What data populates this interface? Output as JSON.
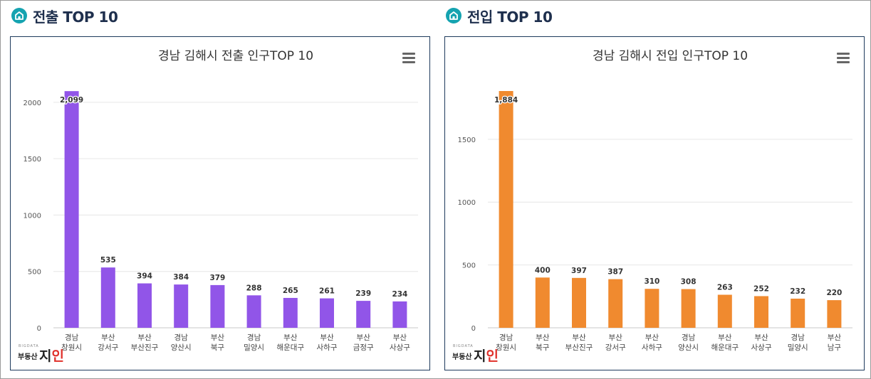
{
  "sections": [
    {
      "heading": "전출 TOP 10"
    },
    {
      "heading": "전입 TOP 10"
    }
  ],
  "logo": {
    "small": "BIGDATA",
    "part1": "부동산",
    "part2a": "지",
    "part2b": "인"
  },
  "chart_data": [
    {
      "type": "bar",
      "title": "경남 김해시 전출 인구TOP 10",
      "color": "#9155e8",
      "categories": [
        [
          "경남",
          "창원시"
        ],
        [
          "부산",
          "강서구"
        ],
        [
          "부산",
          "부산진구"
        ],
        [
          "경남",
          "양산시"
        ],
        [
          "부산",
          "북구"
        ],
        [
          "경남",
          "밀양시"
        ],
        [
          "부산",
          "해운대구"
        ],
        [
          "부산",
          "사하구"
        ],
        [
          "부산",
          "금정구"
        ],
        [
          "부산",
          "사상구"
        ]
      ],
      "values": [
        2099,
        535,
        394,
        384,
        379,
        288,
        265,
        261,
        239,
        234
      ],
      "value_labels": [
        "2,099",
        "535",
        "394",
        "384",
        "379",
        "288",
        "265",
        "261",
        "239",
        "234"
      ],
      "yticks": [
        0,
        500,
        1000,
        1500,
        2000
      ],
      "ylim": [
        0,
        2100
      ],
      "grid": true
    },
    {
      "type": "bar",
      "title": "경남 김해시 전입 인구TOP 10",
      "color": "#f08a2f",
      "categories": [
        [
          "경남",
          "창원시"
        ],
        [
          "부산",
          "북구"
        ],
        [
          "부산",
          "부산진구"
        ],
        [
          "부산",
          "강서구"
        ],
        [
          "부산",
          "사하구"
        ],
        [
          "경남",
          "양산시"
        ],
        [
          "부산",
          "해운대구"
        ],
        [
          "부산",
          "사상구"
        ],
        [
          "경남",
          "밀양시"
        ],
        [
          "부산",
          "남구"
        ]
      ],
      "values": [
        1884,
        400,
        397,
        387,
        310,
        308,
        263,
        252,
        232,
        220
      ],
      "value_labels": [
        "1,884",
        "400",
        "397",
        "387",
        "310",
        "308",
        "263",
        "252",
        "232",
        "220"
      ],
      "yticks": [
        0,
        500,
        1000,
        1500
      ],
      "ylim": [
        0,
        1884
      ],
      "grid": true
    }
  ]
}
